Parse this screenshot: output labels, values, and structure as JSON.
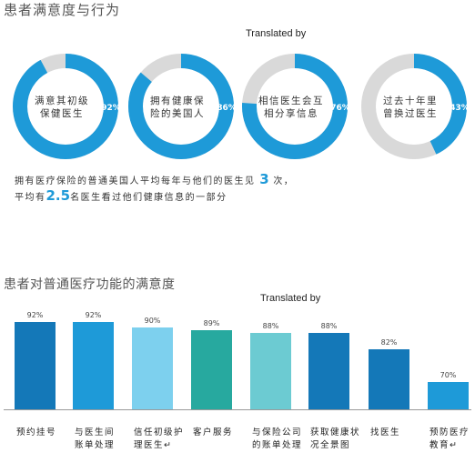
{
  "section1": {
    "title": "患者满意度与行为",
    "translated": "Translated by"
  },
  "chart_data": [
    {
      "type": "pie",
      "title": "患者满意度与行为",
      "series": [
        {
          "label": [
            "满意其初级",
            "保健医生"
          ],
          "value": 92,
          "value_label": "92%"
        },
        {
          "label": [
            "拥有健康保",
            "险的美国人"
          ],
          "value": 86,
          "value_label": "86%"
        },
        {
          "label": [
            "相信医生会互",
            "相分享信息"
          ],
          "value": 76,
          "value_label": "76%"
        },
        {
          "label": [
            "过去十年里",
            "曾换过医生"
          ],
          "value": 43,
          "value_label": "43%"
        }
      ],
      "colors": {
        "filled": "#1E9AD8",
        "remaining": "#D9D9D9"
      }
    },
    {
      "type": "bar",
      "title": "患者对普通医疗功能的满意度",
      "categories": [
        [
          "预约挂号"
        ],
        [
          "与医生间",
          "账单处理"
        ],
        [
          "信任初级护",
          "理医生↵"
        ],
        [
          "客户服务"
        ],
        [
          "与保险公司",
          "的账单处理"
        ],
        [
          "获取健康状",
          "况全景图"
        ],
        [
          "找医生"
        ],
        [
          "预防医疗",
          "教育↵"
        ]
      ],
      "values": [
        92,
        92,
        90,
        89,
        88,
        88,
        82,
        70
      ],
      "value_labels": [
        "92%",
        "92%",
        "90%",
        "89%",
        "88%",
        "88%",
        "82%",
        "70%"
      ],
      "colors": [
        "#1478B8",
        "#1E9AD8",
        "#7DD0EE",
        "#27A99F",
        "#6CCBD2",
        "#1478B8",
        "#1478B8",
        "#1E9AD8"
      ],
      "ylim": [
        0,
        100
      ]
    }
  ],
  "stats": {
    "line1_pre": "拥有医疗保险的普通美国人平均每年与他们的医生见",
    "visits": "3",
    "line1_post": "次，",
    "line2_pre": "平均有",
    "doctors": "2.5",
    "line2_post": "名医生看过他们健康信息的一部分"
  },
  "section2": {
    "title": "患者对普通医疗功能的满意度",
    "translated": "Translated by"
  }
}
